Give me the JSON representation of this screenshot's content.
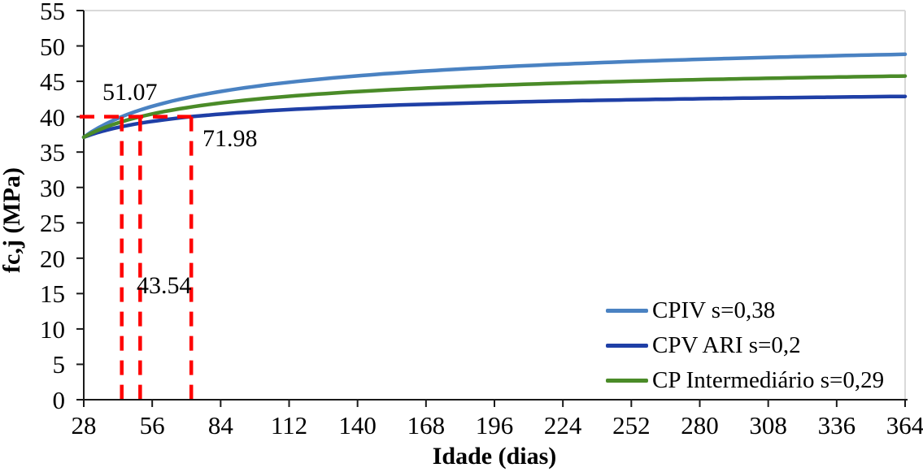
{
  "chart_data": {
    "type": "line",
    "title": "",
    "xlabel": "Idade (dias)",
    "ylabel": "fc,j (MPa)",
    "xlim": [
      28,
      364
    ],
    "ylim": [
      0,
      55
    ],
    "x_ticks": [
      28,
      56,
      84,
      112,
      140,
      168,
      196,
      224,
      252,
      280,
      308,
      336,
      364
    ],
    "y_ticks": [
      0,
      5,
      10,
      15,
      20,
      25,
      30,
      35,
      40,
      45,
      50,
      55
    ],
    "grid": false,
    "legend_position": "inside-lower-right",
    "axis_color": "#1a1a1a",
    "plot_border_color": "#d9d9d9",
    "x": [
      28,
      56,
      84,
      112,
      140,
      168,
      196,
      224,
      252,
      280,
      308,
      336,
      364
    ],
    "series": [
      {
        "name": "CPIV s=0,38",
        "color": "#4a82c2",
        "model": {
          "fc28": 37.1,
          "s": 0.38
        },
        "values": [
          37.1,
          41.5,
          43.6,
          44.9,
          45.8,
          46.5,
          47.0,
          47.4,
          47.8,
          48.1,
          48.4,
          48.6,
          48.8
        ]
      },
      {
        "name": "CPV ARI s=0,2",
        "color": "#1f3fa6",
        "model": {
          "fc28": 37.1,
          "s": 0.2
        },
        "values": [
          37.1,
          39.3,
          40.4,
          41.0,
          41.4,
          41.8,
          42.0,
          42.2,
          42.4,
          42.5,
          42.7,
          42.8,
          42.9
        ]
      },
      {
        "name": "CP Intermediário s=0,29",
        "color": "#4a8b28",
        "model": {
          "fc28": 37.1,
          "s": 0.29
        },
        "values": [
          37.1,
          40.4,
          41.9,
          42.9,
          43.6,
          44.0,
          44.4,
          44.8,
          45.0,
          45.2,
          45.4,
          45.6,
          45.8
        ]
      }
    ],
    "reference": {
      "y_value": 40,
      "color": "#ff0000",
      "style": "dashed",
      "crossings": [
        {
          "label": "43.54",
          "series": "CPIV s=0,38",
          "day": 43.54
        },
        {
          "label": "51.07",
          "series": "CP Intermediário s=0,29",
          "day": 51.07
        },
        {
          "label": "71.98",
          "series": "CPV ARI s=0,2",
          "day": 71.98
        }
      ]
    }
  }
}
